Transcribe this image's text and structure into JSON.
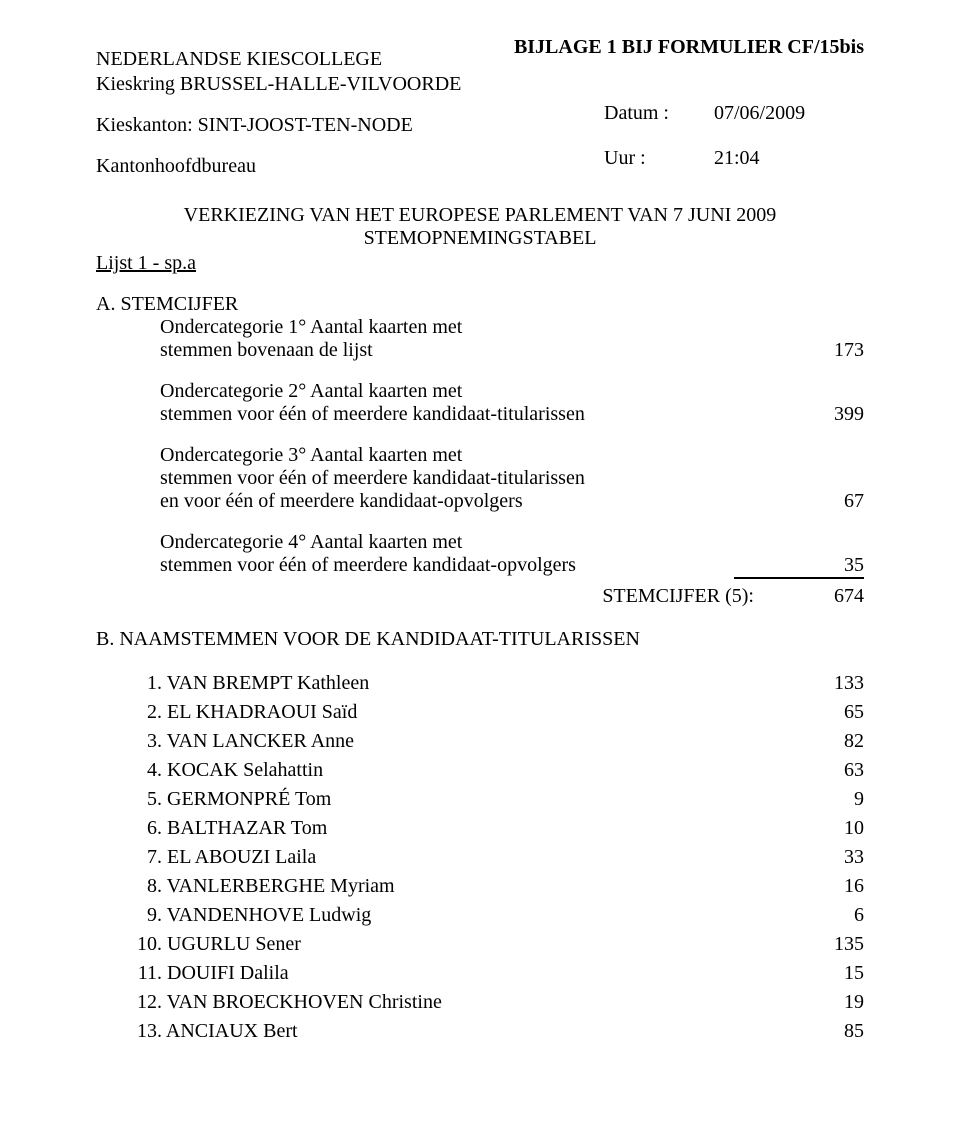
{
  "header": {
    "bijlage": "BIJLAGE 1 BIJ FORMULIER CF/15bis",
    "line1": "NEDERLANDSE KIESCOLLEGE",
    "line2": "Kieskring BRUSSEL-HALLE-VILVOORDE",
    "line3": "Kieskanton: SINT-JOOST-TEN-NODE",
    "line4": "Kantonhoofdbureau",
    "datum_label": "Datum :",
    "datum_value": "07/06/2009",
    "uur_label": "Uur :",
    "uur_value": "21:04"
  },
  "title": {
    "line1": "VERKIEZING VAN HET EUROPESE PARLEMENT VAN 7 JUNI 2009",
    "line2": "STEMOPNEMINGSTABEL"
  },
  "lijst": "Lijst 1 - sp.a",
  "sectionA": {
    "heading": "A. STEMCIJFER",
    "cat1": {
      "l1": "Ondercategorie 1° Aantal kaarten met",
      "l2": "stemmen bovenaan de lijst",
      "value": "173"
    },
    "cat2": {
      "l1": "Ondercategorie 2° Aantal kaarten met",
      "l2": "stemmen voor één of meerdere kandidaat-titularissen",
      "value": "399"
    },
    "cat3": {
      "l1": "Ondercategorie 3° Aantal kaarten met",
      "l2": "stemmen voor één of meerdere kandidaat-titularissen",
      "l3": "en voor één of meerdere kandidaat-opvolgers",
      "value": "67"
    },
    "cat4": {
      "l1": "Ondercategorie 4° Aantal kaarten met",
      "l2": "stemmen voor één of meerdere kandidaat-opvolgers",
      "value": "35"
    },
    "total": {
      "label": "STEMCIJFER (5):",
      "value": "674"
    }
  },
  "sectionB": {
    "heading": "B. NAAMSTEMMEN VOOR DE KANDIDAAT-TITULARISSEN",
    "candidates": [
      {
        "num": "1.",
        "name": "VAN BREMPT Kathleen",
        "votes": "133"
      },
      {
        "num": "2.",
        "name": "EL KHADRAOUI Saïd",
        "votes": "65"
      },
      {
        "num": "3.",
        "name": "VAN LANCKER Anne",
        "votes": "82"
      },
      {
        "num": "4.",
        "name": "KOCAK Selahattin",
        "votes": "63"
      },
      {
        "num": "5.",
        "name": "GERMONPRÉ Tom",
        "votes": "9"
      },
      {
        "num": "6.",
        "name": "BALTHAZAR Tom",
        "votes": "10"
      },
      {
        "num": "7.",
        "name": "EL ABOUZI Laila",
        "votes": "33"
      },
      {
        "num": "8.",
        "name": "VANLERBERGHE Myriam",
        "votes": "16"
      },
      {
        "num": "9.",
        "name": "VANDENHOVE Ludwig",
        "votes": "6"
      },
      {
        "num": "10.",
        "name": "UGURLU Sener",
        "votes": "135"
      },
      {
        "num": "11.",
        "name": "DOUIFI Dalila",
        "votes": "15"
      },
      {
        "num": "12.",
        "name": "VAN BROECKHOVEN Christine",
        "votes": "19"
      },
      {
        "num": "13.",
        "name": "ANCIAUX Bert",
        "votes": "85"
      }
    ]
  }
}
